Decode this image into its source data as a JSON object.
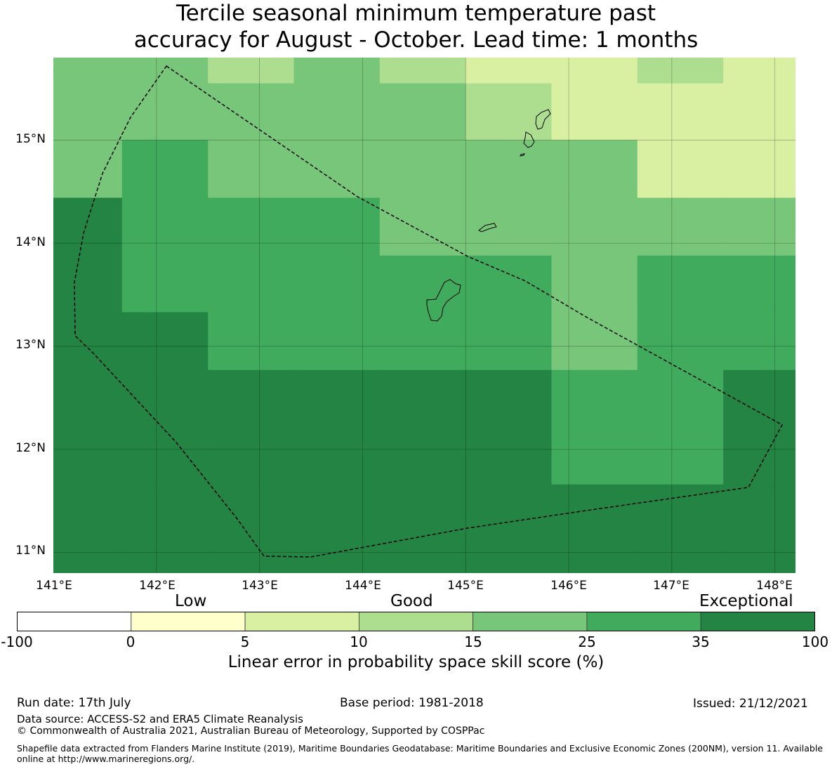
{
  "title_line1": "Tercile seasonal minimum temperature past",
  "title_line2": "accuracy for August - October. Lead time: 1 months",
  "map": {
    "lon_range": [
      141.0,
      148.2
    ],
    "lat_range": [
      10.8,
      15.8
    ],
    "x_ticks": [
      "141°E",
      "142°E",
      "143°E",
      "144°E",
      "145°E",
      "146°E",
      "147°E",
      "148°E"
    ],
    "y_ticks": [
      "15°N",
      "14°N",
      "13°N",
      "12°N",
      "11°N"
    ],
    "colors": [
      "#ffffff",
      "#ffffcc",
      "#d9f0a3",
      "#addd8e",
      "#78c679",
      "#41ab5d",
      "#238443"
    ],
    "grid_lon_edges": [
      141.0,
      141.666,
      142.5,
      143.333,
      144.166,
      145.0,
      145.833,
      146.666,
      147.5,
      148.2
    ],
    "grid_lat_edges": [
      15.8,
      15.55,
      15.0,
      14.44,
      13.88,
      13.33,
      12.77,
      12.21,
      11.66,
      10.8
    ],
    "grid_classes": [
      [
        4,
        4,
        3,
        4,
        3,
        2,
        2,
        3,
        2
      ],
      [
        4,
        4,
        4,
        4,
        4,
        3,
        2,
        2,
        2
      ],
      [
        4,
        5,
        4,
        4,
        4,
        4,
        4,
        2,
        2
      ],
      [
        6,
        5,
        5,
        5,
        4,
        4,
        4,
        4,
        4
      ],
      [
        6,
        5,
        5,
        5,
        5,
        5,
        4,
        5,
        5
      ],
      [
        6,
        6,
        5,
        5,
        5,
        5,
        4,
        5,
        5
      ],
      [
        6,
        6,
        6,
        6,
        6,
        6,
        5,
        5,
        6
      ],
      [
        6,
        6,
        6,
        6,
        6,
        6,
        5,
        5,
        6
      ],
      [
        6,
        6,
        6,
        6,
        6,
        6,
        6,
        6,
        6
      ]
    ]
  },
  "legend": {
    "words": [
      "Low",
      "Good",
      "Exceptional"
    ],
    "ticks": [
      "-100",
      "0",
      "5",
      "10",
      "15",
      "25",
      "35",
      "100"
    ],
    "colors": [
      "#ffffff",
      "#ffffcc",
      "#d9f0a3",
      "#addd8e",
      "#78c679",
      "#41ab5d",
      "#238443"
    ],
    "label": "Linear error in probability space skill score (%)"
  },
  "footer": {
    "run_date": "Run date: 17th July",
    "base_period": "Base period: 1981-2018",
    "issued": "Issued: 21/12/2021",
    "data_source": "Data source: ACCESS-S2 and ERA5 Climate Reanalysis",
    "copyright": "© Commonwealth of Australia 2021, Australian Bureau of Meteorology, Supported by COSPPac",
    "shapefile": "Shapefile data extracted from Flanders Marine Institute (2019), Maritime Boundaries Geodatabase: Maritime Boundaries and Exclusive Economic Zones (200NM), version 11. Available online at http://www.marineregions.org/."
  }
}
